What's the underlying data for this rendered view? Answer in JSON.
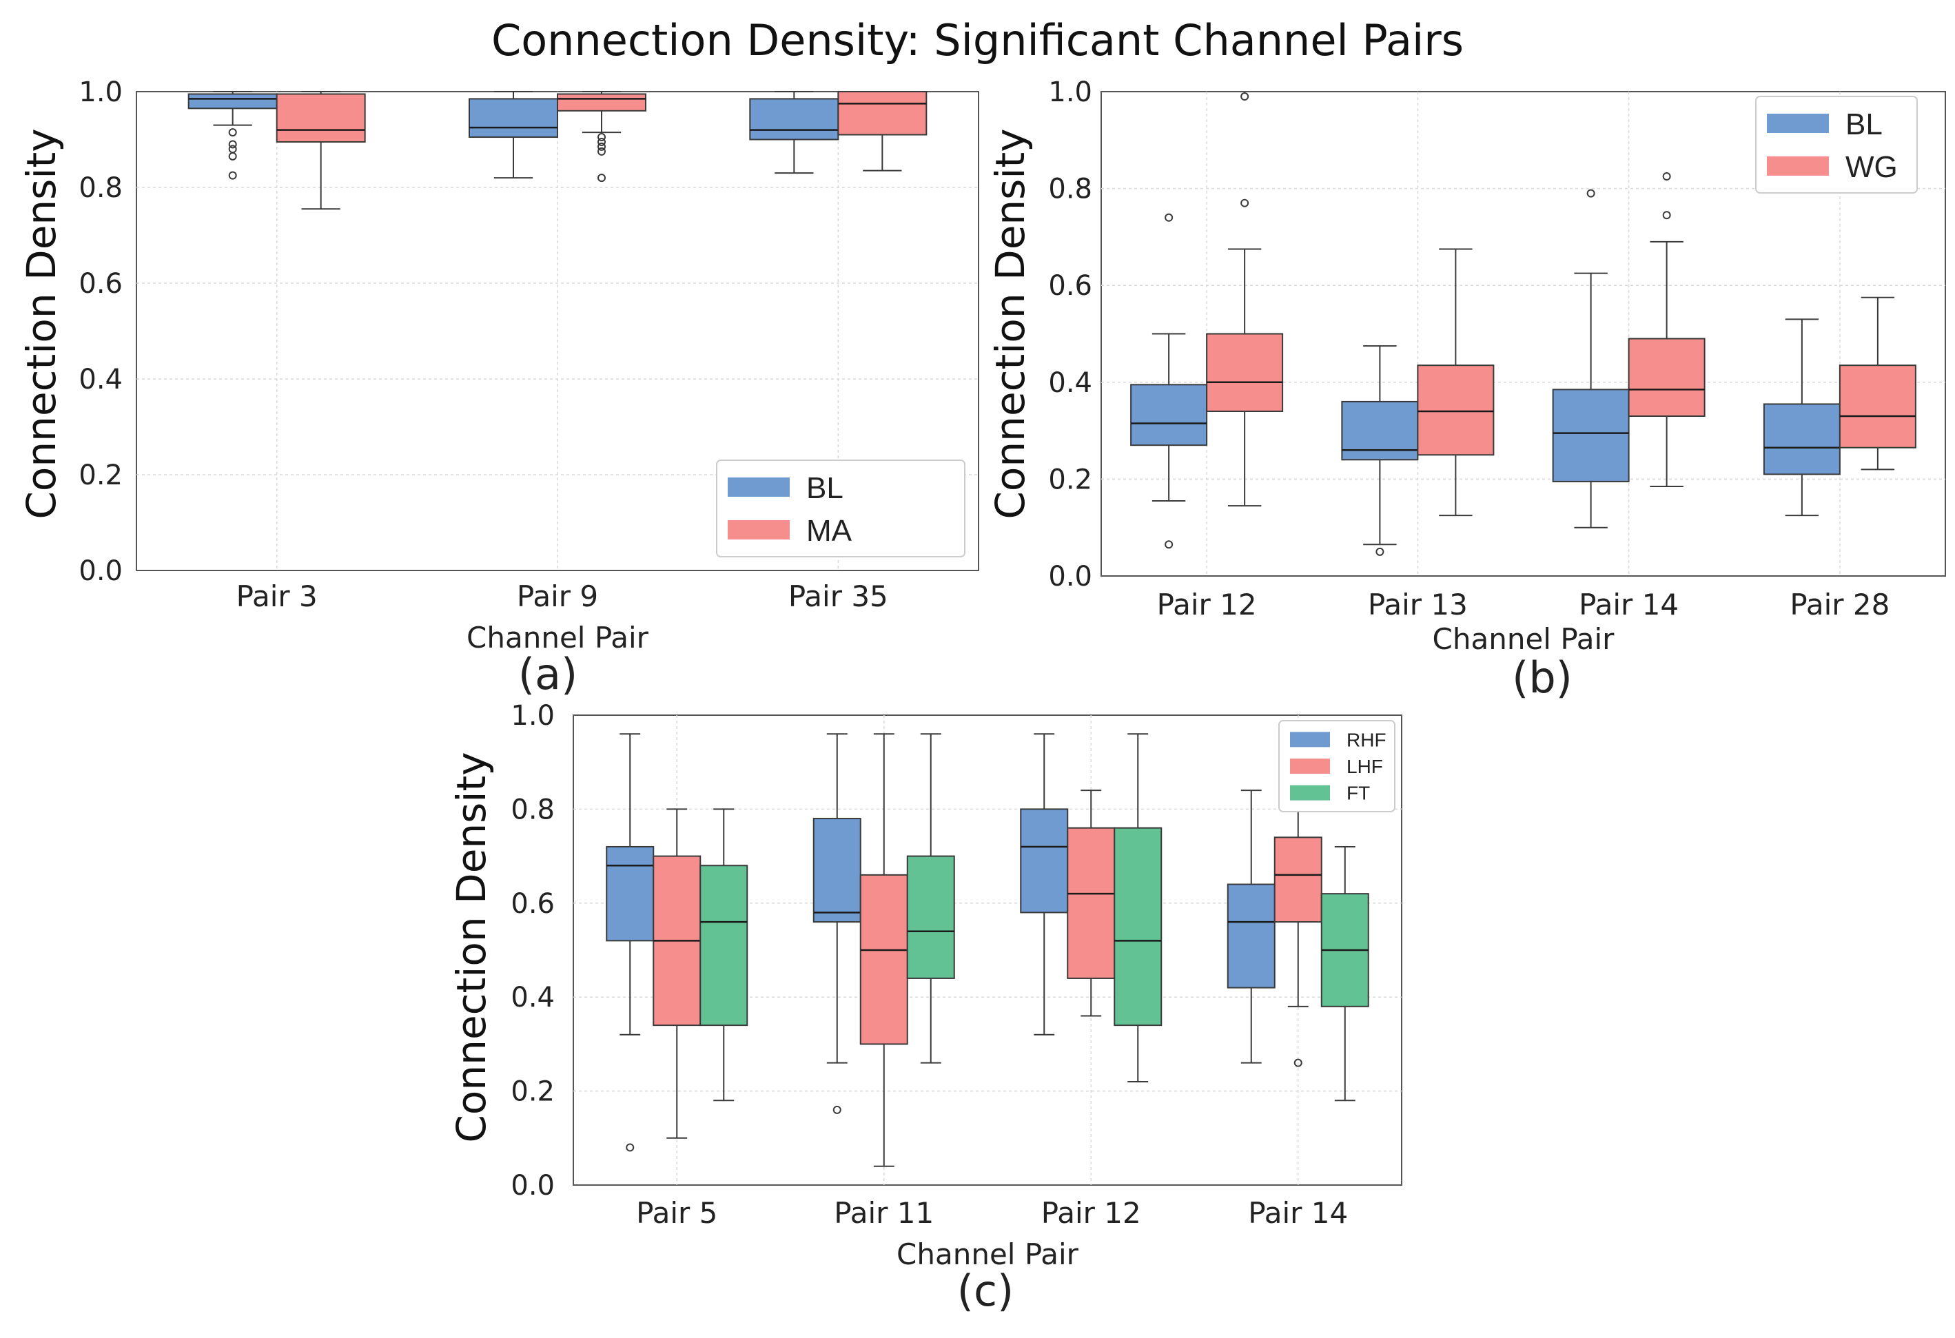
{
  "figure_title": "Connection Density: Significant Channel Pairs",
  "colors": {
    "blue": "#6f9bd1",
    "red": "#f58e8c",
    "green": "#62c293",
    "line": "#3a3a3a",
    "grid": "#d9d9d9"
  },
  "chart_data": [
    {
      "type": "box",
      "panel_label": "(a)",
      "ylabel": "Connection Density",
      "xlabel": "Channel Pair",
      "ylim": [
        0.0,
        1.0
      ],
      "yticks": [
        "0.0",
        "0.2",
        "0.4",
        "0.6",
        "0.8",
        "1.0"
      ],
      "grid": true,
      "legend": {
        "position": "bottom-right",
        "entries": [
          "BL",
          "MA"
        ]
      },
      "categories": [
        "Pair 3",
        "Pair 9",
        "Pair 35"
      ],
      "series": [
        {
          "name": "BL",
          "color_key": "blue",
          "boxes": [
            {
              "whislo": 0.93,
              "q1": 0.965,
              "med": 0.985,
              "q3": 0.995,
              "whishi": 1.0,
              "fliers": [
                0.915,
                0.89,
                0.88,
                0.865,
                0.825
              ]
            },
            {
              "whislo": 0.82,
              "q1": 0.905,
              "med": 0.925,
              "q3": 0.985,
              "whishi": 1.0,
              "fliers": []
            },
            {
              "whislo": 0.83,
              "q1": 0.9,
              "med": 0.92,
              "q3": 0.985,
              "whishi": 1.0,
              "fliers": []
            }
          ]
        },
        {
          "name": "MA",
          "color_key": "red",
          "boxes": [
            {
              "whislo": 0.755,
              "q1": 0.895,
              "med": 0.92,
              "q3": 0.995,
              "whishi": 1.0,
              "fliers": []
            },
            {
              "whislo": 0.915,
              "q1": 0.96,
              "med": 0.985,
              "q3": 0.995,
              "whishi": 1.0,
              "fliers": [
                0.905,
                0.895,
                0.885,
                0.875,
                0.82
              ]
            },
            {
              "whislo": 0.835,
              "q1": 0.91,
              "med": 0.975,
              "q3": 1.0,
              "whishi": 1.0,
              "fliers": []
            }
          ]
        }
      ]
    },
    {
      "type": "box",
      "panel_label": "(b)",
      "ylabel": "Connection Density",
      "xlabel": "Channel Pair",
      "ylim": [
        0.0,
        1.0
      ],
      "yticks": [
        "0.0",
        "0.2",
        "0.4",
        "0.6",
        "0.8",
        "1.0"
      ],
      "grid": true,
      "legend": {
        "position": "top-right",
        "entries": [
          "BL",
          "WG"
        ]
      },
      "categories": [
        "Pair 12",
        "Pair 13",
        "Pair 14",
        "Pair 28"
      ],
      "series": [
        {
          "name": "BL",
          "color_key": "blue",
          "boxes": [
            {
              "whislo": 0.155,
              "q1": 0.27,
              "med": 0.315,
              "q3": 0.395,
              "whishi": 0.5,
              "fliers": [
                0.065,
                0.74
              ]
            },
            {
              "whislo": 0.065,
              "q1": 0.24,
              "med": 0.26,
              "q3": 0.36,
              "whishi": 0.475,
              "fliers": [
                0.05
              ]
            },
            {
              "whislo": 0.1,
              "q1": 0.195,
              "med": 0.295,
              "q3": 0.385,
              "whishi": 0.625,
              "fliers": [
                0.79
              ]
            },
            {
              "whislo": 0.125,
              "q1": 0.21,
              "med": 0.265,
              "q3": 0.355,
              "whishi": 0.53,
              "fliers": []
            }
          ]
        },
        {
          "name": "WG",
          "color_key": "red",
          "boxes": [
            {
              "whislo": 0.145,
              "q1": 0.34,
              "med": 0.4,
              "q3": 0.5,
              "whishi": 0.675,
              "fliers": [
                0.77,
                0.99
              ]
            },
            {
              "whislo": 0.125,
              "q1": 0.25,
              "med": 0.34,
              "q3": 0.435,
              "whishi": 0.675,
              "fliers": []
            },
            {
              "whislo": 0.185,
              "q1": 0.33,
              "med": 0.385,
              "q3": 0.49,
              "whishi": 0.69,
              "fliers": [
                0.745,
                0.825
              ]
            },
            {
              "whislo": 0.22,
              "q1": 0.265,
              "med": 0.33,
              "q3": 0.435,
              "whishi": 0.575,
              "fliers": []
            }
          ]
        }
      ]
    },
    {
      "type": "box",
      "panel_label": "(c)",
      "ylabel": "Connection Density",
      "xlabel": "Channel Pair",
      "ylim": [
        0.0,
        1.0
      ],
      "yticks": [
        "0.0",
        "0.2",
        "0.4",
        "0.6",
        "0.8",
        "1.0"
      ],
      "grid": true,
      "legend": {
        "position": "top-right",
        "entries": [
          "RHF",
          "LHF",
          "FT"
        ]
      },
      "categories": [
        "Pair 5",
        "Pair 11",
        "Pair 12",
        "Pair 14"
      ],
      "series": [
        {
          "name": "RHF",
          "color_key": "blue",
          "boxes": [
            {
              "whislo": 0.32,
              "q1": 0.52,
              "med": 0.68,
              "q3": 0.72,
              "whishi": 0.96,
              "fliers": [
                0.08
              ]
            },
            {
              "whislo": 0.26,
              "q1": 0.56,
              "med": 0.58,
              "q3": 0.78,
              "whishi": 0.96,
              "fliers": [
                0.16
              ]
            },
            {
              "whislo": 0.32,
              "q1": 0.58,
              "med": 0.72,
              "q3": 0.8,
              "whishi": 0.96,
              "fliers": []
            },
            {
              "whislo": 0.26,
              "q1": 0.42,
              "med": 0.56,
              "q3": 0.64,
              "whishi": 0.84,
              "fliers": []
            }
          ]
        },
        {
          "name": "LHF",
          "color_key": "red",
          "boxes": [
            {
              "whislo": 0.1,
              "q1": 0.34,
              "med": 0.52,
              "q3": 0.7,
              "whishi": 0.8,
              "fliers": []
            },
            {
              "whislo": 0.04,
              "q1": 0.3,
              "med": 0.5,
              "q3": 0.66,
              "whishi": 0.96,
              "fliers": []
            },
            {
              "whislo": 0.36,
              "q1": 0.44,
              "med": 0.62,
              "q3": 0.76,
              "whishi": 0.84,
              "fliers": []
            },
            {
              "whislo": 0.38,
              "q1": 0.56,
              "med": 0.66,
              "q3": 0.74,
              "whishi": 0.86,
              "fliers": [
                0.26
              ]
            }
          ]
        },
        {
          "name": "FT",
          "color_key": "green",
          "boxes": [
            {
              "whislo": 0.18,
              "q1": 0.34,
              "med": 0.56,
              "q3": 0.68,
              "whishi": 0.8,
              "fliers": []
            },
            {
              "whislo": 0.26,
              "q1": 0.44,
              "med": 0.54,
              "q3": 0.7,
              "whishi": 0.96,
              "fliers": []
            },
            {
              "whislo": 0.22,
              "q1": 0.34,
              "med": 0.52,
              "q3": 0.76,
              "whishi": 0.96,
              "fliers": []
            },
            {
              "whislo": 0.18,
              "q1": 0.38,
              "med": 0.5,
              "q3": 0.62,
              "whishi": 0.72,
              "fliers": []
            }
          ]
        }
      ]
    }
  ]
}
